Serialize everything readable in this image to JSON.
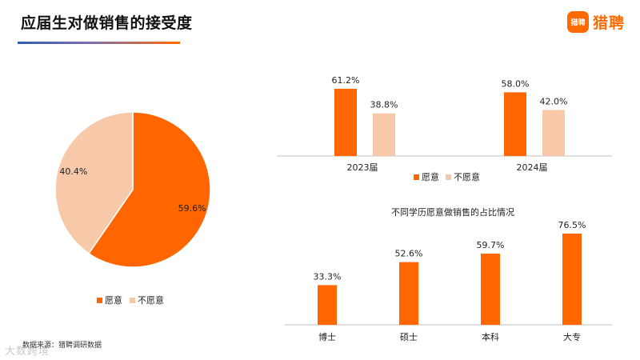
{
  "header": {
    "title": "应届生对做销售的接受度",
    "logo_badge": "猎聘",
    "logo_text": "猎聘"
  },
  "colors": {
    "willing": "#ff6600",
    "unwilling": "#f8c9a9",
    "accent": "#ff6a00"
  },
  "chart_data": [
    {
      "type": "pie",
      "title": "",
      "slices": [
        {
          "label": "愿意",
          "value": 59.6,
          "text": "59.6%"
        },
        {
          "label": "不愿意",
          "value": 40.4,
          "text": "40.4%"
        }
      ],
      "legend": [
        "愿意",
        "不愿意"
      ],
      "legend_position": "bottom"
    },
    {
      "type": "bar",
      "title": "",
      "categories": [
        "2023届",
        "2024届"
      ],
      "series": [
        {
          "name": "愿意",
          "values": [
            61.2,
            58.0
          ],
          "labels": [
            "61.2%",
            "58.0%"
          ]
        },
        {
          "name": "不愿意",
          "values": [
            38.8,
            42.0
          ],
          "labels": [
            "38.8%",
            "42.0%"
          ]
        }
      ],
      "ylim": [
        0,
        70
      ],
      "grid": false,
      "legend_position": "bottom"
    },
    {
      "type": "bar",
      "title": "不同学历愿意做销售的占比情况",
      "categories": [
        "博士",
        "硕士",
        "本科",
        "大专"
      ],
      "values": [
        33.3,
        52.6,
        59.7,
        76.5
      ],
      "labels": [
        "33.3%",
        "52.6%",
        "59.7%",
        "76.5%"
      ],
      "ylim": [
        0,
        85
      ],
      "grid": false
    }
  ],
  "footer": {
    "source": "数据来源：猎聘调研数据",
    "watermark": "大数跨境"
  }
}
